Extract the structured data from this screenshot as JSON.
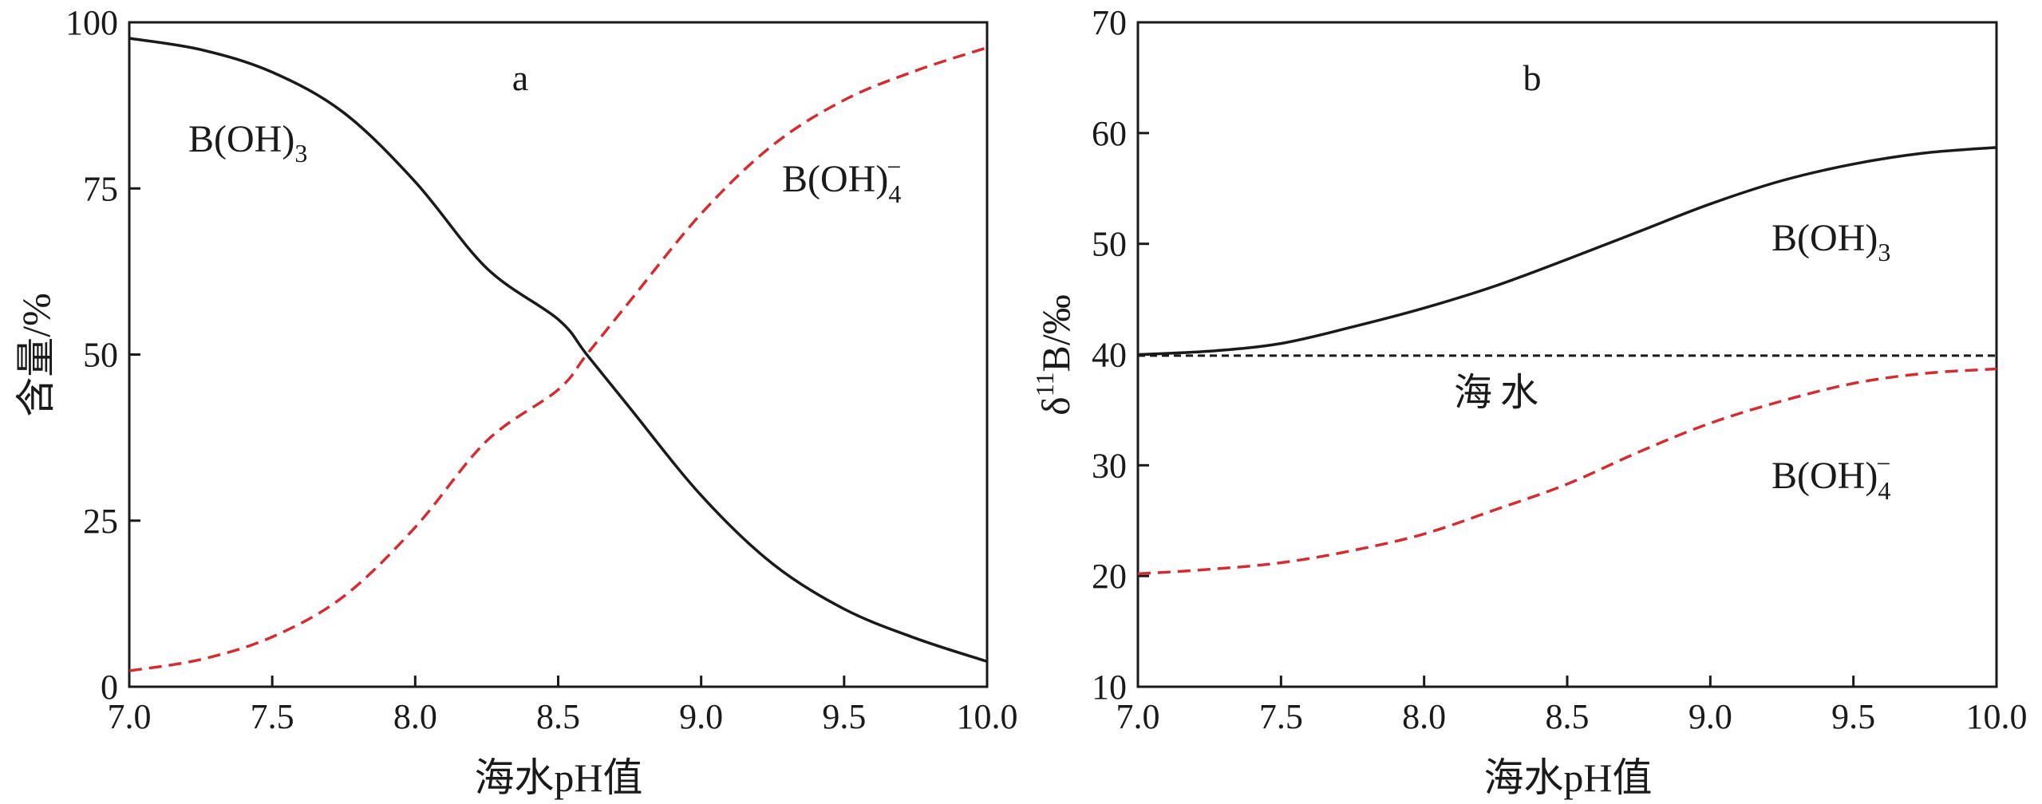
{
  "colors": {
    "axis": "#1a1a1a",
    "boric_acid": "#1a1a1a",
    "borate": "#d22d32",
    "seawater": "#1a1a1a"
  },
  "chart_data": [
    {
      "type": "line",
      "panel_label": "a",
      "xlabel": "海水pH值",
      "ylabel": "含量/%",
      "xlim": [
        7.0,
        10.0
      ],
      "ylim": [
        0,
        100
      ],
      "xticks": [
        "7.0",
        "7.5",
        "8.0",
        "8.5",
        "9.0",
        "9.5",
        "10.0"
      ],
      "yticks": [
        "0",
        "25",
        "50",
        "75",
        "100"
      ],
      "grid": false,
      "series": [
        {
          "name": "B(OH)3",
          "style": "solid",
          "x": [
            7.0,
            7.25,
            7.5,
            7.75,
            8.0,
            8.25,
            8.5,
            8.6,
            8.75,
            9.0,
            9.25,
            9.5,
            9.75,
            10.0
          ],
          "values": [
            97.6,
            95.9,
            92.5,
            86.4,
            76.0,
            63.0,
            55.3,
            50.0,
            42.0,
            28.8,
            18.5,
            11.7,
            7.3,
            3.8
          ]
        },
        {
          "name": "B(OH)4−",
          "style": "dashed",
          "x": [
            7.0,
            7.25,
            7.5,
            7.75,
            8.0,
            8.25,
            8.5,
            8.6,
            8.75,
            9.0,
            9.25,
            9.5,
            9.75,
            10.0
          ],
          "values": [
            2.4,
            4.1,
            7.5,
            13.6,
            24.0,
            37.0,
            44.7,
            50.0,
            58.0,
            71.2,
            81.5,
            88.3,
            92.7,
            96.2
          ]
        }
      ]
    },
    {
      "type": "line",
      "panel_label": "b",
      "xlabel": "海水pH值",
      "ylabel_parts": {
        "delta": "δ",
        "superscript": "11",
        "rest": "B/‰"
      },
      "xlim": [
        7.0,
        10.0
      ],
      "ylim": [
        10,
        70
      ],
      "xticks": [
        "7.0",
        "7.5",
        "8.0",
        "8.5",
        "9.0",
        "9.5",
        "10.0"
      ],
      "yticks": [
        "10",
        "20",
        "30",
        "40",
        "50",
        "60",
        "70"
      ],
      "grid": false,
      "reference_line": {
        "label": "海水",
        "value": 39.9,
        "style": "dashed"
      },
      "series": [
        {
          "name": "B(OH)3",
          "style": "solid",
          "x": [
            7.0,
            7.25,
            7.5,
            7.75,
            8.0,
            8.25,
            8.5,
            8.75,
            9.0,
            9.25,
            9.5,
            9.75,
            10.0
          ],
          "values": [
            40.0,
            40.3,
            41.0,
            42.5,
            44.2,
            46.2,
            48.6,
            51.1,
            53.6,
            55.7,
            57.2,
            58.2,
            58.7
          ]
        },
        {
          "name": "B(OH)4−",
          "style": "dashed",
          "x": [
            7.0,
            7.25,
            7.5,
            7.75,
            8.0,
            8.25,
            8.5,
            8.75,
            9.0,
            9.25,
            9.5,
            9.75,
            10.0
          ],
          "values": [
            20.2,
            20.6,
            21.2,
            22.3,
            23.8,
            26.0,
            28.3,
            31.2,
            33.8,
            35.8,
            37.4,
            38.3,
            38.7
          ]
        }
      ]
    }
  ]
}
